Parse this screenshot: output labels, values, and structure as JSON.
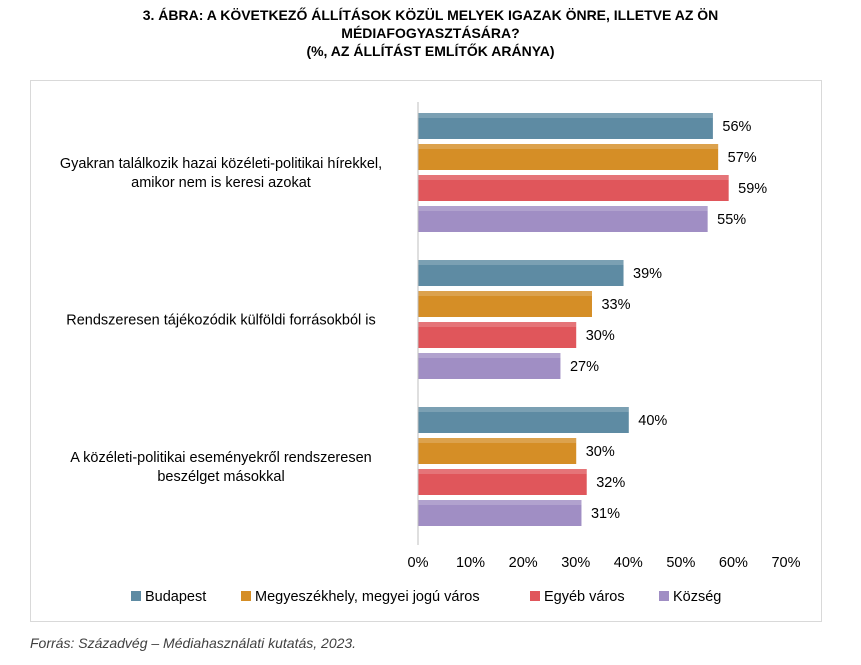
{
  "title": {
    "line1": "3. ÁBRA: A KÖVETKEZŐ ÁLLÍTÁSOK KÖZÜL MELYEK IGAZAK ÖNRE, ILLETVE AZ ÖN",
    "line2": "MÉDIAFOGYASZTÁSÁRA?",
    "line3": "(%, AZ ÁLLÍTÁST EMLÍTŐK ARÁNYA)"
  },
  "source": "Forrás: Századvég – Médiahasználati kutatás, 2023.",
  "chart_data": {
    "type": "bar",
    "orientation": "horizontal",
    "categories": [
      [
        "Gyakran találkozik hazai közéleti-politikai hírekkel,",
        "amikor nem is keresi azokat"
      ],
      [
        "Rendszeresen tájékozódik külföldi forrásokból is"
      ],
      [
        "A közéleti-politikai eseményekről rendszeresen",
        "beszélget másokkal"
      ]
    ],
    "series": [
      {
        "name": "Budapest",
        "color": "#5e8ba3",
        "values": [
          56,
          39,
          40
        ]
      },
      {
        "name": "Megyeszékhely, megyei jogú város",
        "color": "#d58e26",
        "values": [
          57,
          33,
          30
        ]
      },
      {
        "name": "Egyéb város",
        "color": "#e0565b",
        "values": [
          59,
          30,
          32
        ]
      },
      {
        "name": "Község",
        "color": "#a08ec4",
        "values": [
          55,
          27,
          31
        ]
      }
    ],
    "xlim": [
      0,
      70
    ],
    "xticks": [
      0,
      10,
      20,
      30,
      40,
      50,
      60,
      70
    ],
    "tick_suffix": "%",
    "value_suffix": "%",
    "legend_position": "bottom",
    "grid": false
  }
}
